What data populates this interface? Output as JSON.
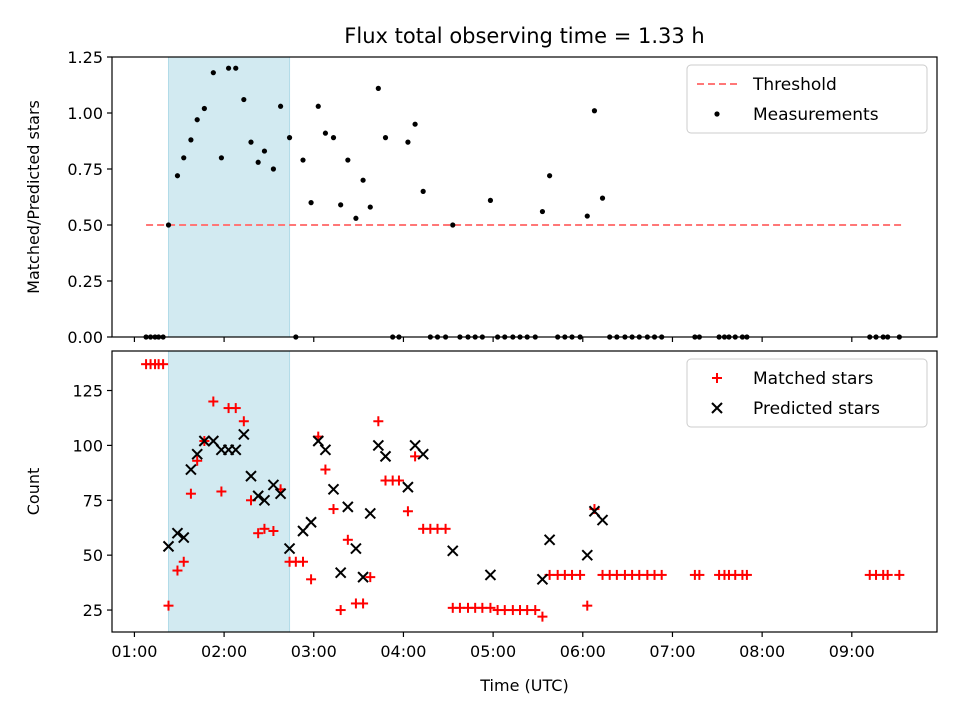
{
  "figure_title": "Flux total observing time = 1.33 h",
  "colors": {
    "threshold": "#ff7777",
    "measurement": "#000000",
    "matched": "#ff0000",
    "predicted": "#000000",
    "shade": "#add8e6"
  },
  "chart_data": [
    {
      "type": "scatter",
      "title": "Flux total observing time = 1.33 h",
      "xlabel": "",
      "ylabel": "Matched/Predicted stars",
      "xlim": [
        0.75,
        9.95
      ],
      "ylim": [
        0,
        1.25
      ],
      "x_ticks": [
        "01:00",
        "02:00",
        "03:00",
        "04:00",
        "05:00",
        "06:00",
        "07:00",
        "08:00",
        "09:00"
      ],
      "x_tick_values": [
        1,
        2,
        3,
        4,
        5,
        6,
        7,
        8,
        9
      ],
      "y_ticks": [
        "0.00",
        "0.25",
        "0.50",
        "0.75",
        "1.00",
        "1.25"
      ],
      "y_tick_values": [
        0,
        0.25,
        0.5,
        0.75,
        1.0,
        1.25
      ],
      "shaded_span": [
        1.38,
        2.73
      ],
      "threshold": {
        "name": "Threshold",
        "y": 0.5,
        "x_range": [
          1.13,
          9.55
        ],
        "style": "dashed"
      },
      "legend": {
        "position": "upper right",
        "entries": [
          "Threshold",
          "Measurements"
        ]
      },
      "series": [
        {
          "name": "Measurements",
          "marker": "dot",
          "x": [
            1.13,
            1.18,
            1.23,
            1.27,
            1.32,
            1.38,
            1.48,
            1.55,
            1.63,
            1.7,
            1.78,
            1.88,
            1.97,
            2.05,
            2.13,
            2.22,
            2.3,
            2.38,
            2.45,
            2.55,
            2.63,
            2.73,
            2.8,
            2.88,
            2.97,
            3.05,
            3.13,
            3.22,
            3.3,
            3.38,
            3.47,
            3.55,
            3.63,
            3.72,
            3.8,
            3.88,
            3.95,
            4.05,
            4.13,
            4.22,
            4.3,
            4.38,
            4.47,
            4.55,
            4.63,
            4.72,
            4.8,
            4.88,
            4.97,
            5.05,
            5.13,
            5.22,
            5.3,
            5.38,
            5.47,
            5.55,
            5.63,
            5.72,
            5.8,
            5.88,
            5.97,
            6.05,
            6.13,
            6.22,
            6.3,
            6.38,
            6.47,
            6.55,
            6.63,
            6.72,
            6.8,
            6.88,
            7.25,
            7.3,
            7.52,
            7.58,
            7.63,
            7.7,
            7.78,
            7.83,
            9.2,
            9.27,
            9.35,
            9.4,
            9.53
          ],
          "y": [
            0,
            0,
            0,
            0,
            0,
            0.5,
            0.72,
            0.8,
            0.88,
            0.97,
            1.02,
            1.18,
            0.8,
            1.2,
            1.2,
            1.06,
            0.87,
            0.78,
            0.83,
            0.75,
            1.03,
            0.89,
            0,
            0.79,
            0.6,
            1.03,
            0.91,
            0.89,
            0.59,
            0.79,
            0.53,
            0.7,
            0.58,
            1.11,
            0.89,
            0,
            0,
            0.87,
            0.95,
            0.65,
            0,
            0,
            0,
            0.5,
            0,
            0,
            0,
            0,
            0.61,
            0,
            0,
            0,
            0,
            0,
            0,
            0.56,
            0.72,
            0,
            0,
            0,
            0,
            0.54,
            1.01,
            0.62,
            0,
            0,
            0,
            0,
            0,
            0,
            0,
            0,
            0,
            0,
            0,
            0,
            0,
            0,
            0,
            0,
            0,
            0,
            0,
            0,
            0
          ]
        }
      ]
    },
    {
      "type": "scatter",
      "title": "",
      "xlabel": "Time (UTC)",
      "ylabel": "Count",
      "xlim": [
        0.75,
        9.95
      ],
      "ylim": [
        15,
        143
      ],
      "x_ticks": [
        "01:00",
        "02:00",
        "03:00",
        "04:00",
        "05:00",
        "06:00",
        "07:00",
        "08:00",
        "09:00"
      ],
      "x_tick_values": [
        1,
        2,
        3,
        4,
        5,
        6,
        7,
        8,
        9
      ],
      "y_ticks": [
        "25",
        "50",
        "75",
        "100",
        "125"
      ],
      "y_tick_values": [
        25,
        50,
        75,
        100,
        125
      ],
      "shaded_span": [
        1.38,
        2.73
      ],
      "legend": {
        "position": "upper right",
        "entries": [
          "Matched stars",
          "Predicted stars"
        ]
      },
      "series": [
        {
          "name": "Matched stars",
          "marker": "plus",
          "x": [
            1.13,
            1.18,
            1.23,
            1.27,
            1.32,
            1.38,
            1.48,
            1.55,
            1.63,
            1.7,
            1.78,
            1.88,
            1.97,
            2.05,
            2.13,
            2.22,
            2.3,
            2.38,
            2.45,
            2.55,
            2.63,
            2.73,
            2.8,
            2.88,
            2.97,
            3.05,
            3.13,
            3.22,
            3.3,
            3.38,
            3.47,
            3.55,
            3.63,
            3.72,
            3.8,
            3.88,
            3.95,
            4.05,
            4.13,
            4.22,
            4.3,
            4.38,
            4.47,
            4.55,
            4.63,
            4.72,
            4.8,
            4.88,
            4.97,
            5.05,
            5.13,
            5.22,
            5.3,
            5.38,
            5.47,
            5.55,
            5.63,
            5.72,
            5.8,
            5.88,
            5.97,
            6.05,
            6.13,
            6.22,
            6.3,
            6.38,
            6.47,
            6.55,
            6.63,
            6.72,
            6.8,
            6.88,
            7.25,
            7.3,
            7.52,
            7.58,
            7.63,
            7.7,
            7.78,
            7.83,
            9.2,
            9.27,
            9.35,
            9.4,
            9.53
          ],
          "y": [
            137,
            137,
            137,
            137,
            137,
            27,
            43,
            47,
            78,
            93,
            102,
            120,
            79,
            117,
            117,
            111,
            75,
            60,
            62,
            61,
            80,
            47,
            47,
            47,
            39,
            104,
            89,
            71,
            25,
            57,
            28,
            28,
            40,
            111,
            84,
            84,
            84,
            70,
            95,
            62,
            62,
            62,
            62,
            26,
            26,
            26,
            26,
            26,
            26,
            25,
            25,
            25,
            25,
            25,
            25,
            22,
            41,
            41,
            41,
            41,
            41,
            27,
            71,
            41,
            41,
            41,
            41,
            41,
            41,
            41,
            41,
            41,
            41,
            41,
            41,
            41,
            41,
            41,
            41,
            41,
            41,
            41,
            41,
            41,
            41
          ]
        },
        {
          "name": "Predicted stars",
          "marker": "x",
          "x": [
            1.38,
            1.48,
            1.55,
            1.63,
            1.7,
            1.78,
            1.88,
            1.97,
            2.05,
            2.13,
            2.22,
            2.3,
            2.38,
            2.45,
            2.55,
            2.63,
            2.73,
            2.88,
            2.97,
            3.05,
            3.13,
            3.22,
            3.3,
            3.38,
            3.47,
            3.55,
            3.63,
            3.72,
            3.8,
            4.05,
            4.13,
            4.22,
            4.55,
            4.97,
            5.55,
            5.63,
            6.05,
            6.13,
            6.22
          ],
          "y": [
            54,
            60,
            58,
            89,
            96,
            102,
            102,
            98,
            98,
            98,
            105,
            86,
            77,
            75,
            82,
            78,
            53,
            61,
            65,
            102,
            98,
            80,
            42,
            72,
            53,
            40,
            69,
            100,
            95,
            81,
            100,
            96,
            52,
            41,
            39,
            57,
            50,
            70,
            66
          ]
        }
      ]
    }
  ]
}
